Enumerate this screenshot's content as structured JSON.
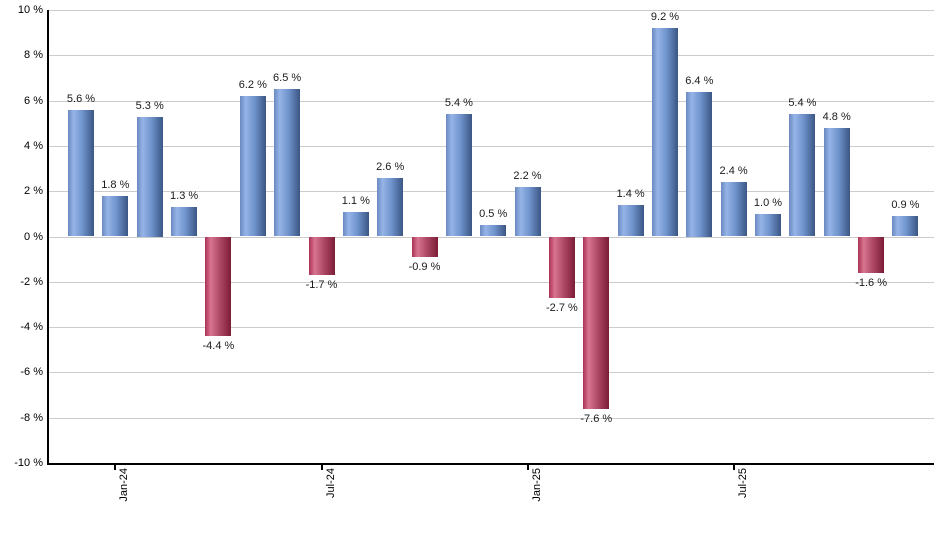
{
  "chart_data": {
    "type": "bar",
    "title": "",
    "xlabel": "",
    "ylabel": "",
    "ylim": [
      -10,
      10
    ],
    "grid": true,
    "legend": "none",
    "y_ticks": [
      {
        "value": 10,
        "label": "10 %"
      },
      {
        "value": 8,
        "label": "8 %"
      },
      {
        "value": 6,
        "label": "6 %"
      },
      {
        "value": 4,
        "label": "4 %"
      },
      {
        "value": 2,
        "label": "2 %"
      },
      {
        "value": 0,
        "label": "0 %"
      },
      {
        "value": -2,
        "label": "-2 %"
      },
      {
        "value": -4,
        "label": "-4 %"
      },
      {
        "value": -6,
        "label": "-6 %"
      },
      {
        "value": -8,
        "label": "-8 %"
      },
      {
        "value": -10,
        "label": "-10 %"
      }
    ],
    "x_ticks": [
      {
        "bar_index": 1,
        "label": "Jan-24"
      },
      {
        "bar_index": 7,
        "label": "Jul-24"
      },
      {
        "bar_index": 13,
        "label": "Jan-25"
      },
      {
        "bar_index": 19,
        "label": "Jul-25"
      }
    ],
    "values": [
      5.6,
      1.8,
      5.3,
      1.3,
      -4.4,
      6.2,
      6.5,
      -1.7,
      1.1,
      2.6,
      -0.9,
      5.4,
      0.5,
      2.2,
      -2.7,
      -7.6,
      1.4,
      9.2,
      6.4,
      2.4,
      1.0,
      5.4,
      4.8,
      -1.6,
      0.9
    ],
    "value_labels": [
      "5.6 %",
      "1.8 %",
      "5.3 %",
      "1.3 %",
      "-4.4 %",
      "6.2 %",
      "6.5 %",
      "-1.7 %",
      "1.1 %",
      "2.6 %",
      "-0.9 %",
      "5.4 %",
      "0.5 %",
      "2.2 %",
      "-2.7 %",
      "-7.6 %",
      "1.4 %",
      "9.2 %",
      "6.4 %",
      "2.4 %",
      "1.0 %",
      "5.4 %",
      "4.8 %",
      "-1.6 %",
      "0.9 %"
    ],
    "colors": {
      "positive_gradient": [
        "#6a89c0",
        "#96b4e7",
        "#7094cd",
        "#3b5684"
      ],
      "negative_gradient": [
        "#aa3154",
        "#d8758f",
        "#b04a68",
        "#7b1c35"
      ],
      "gridline": "#cccccc",
      "axis": "#000000",
      "label_text": "#1a1a1a",
      "background": "#ffffff"
    }
  }
}
